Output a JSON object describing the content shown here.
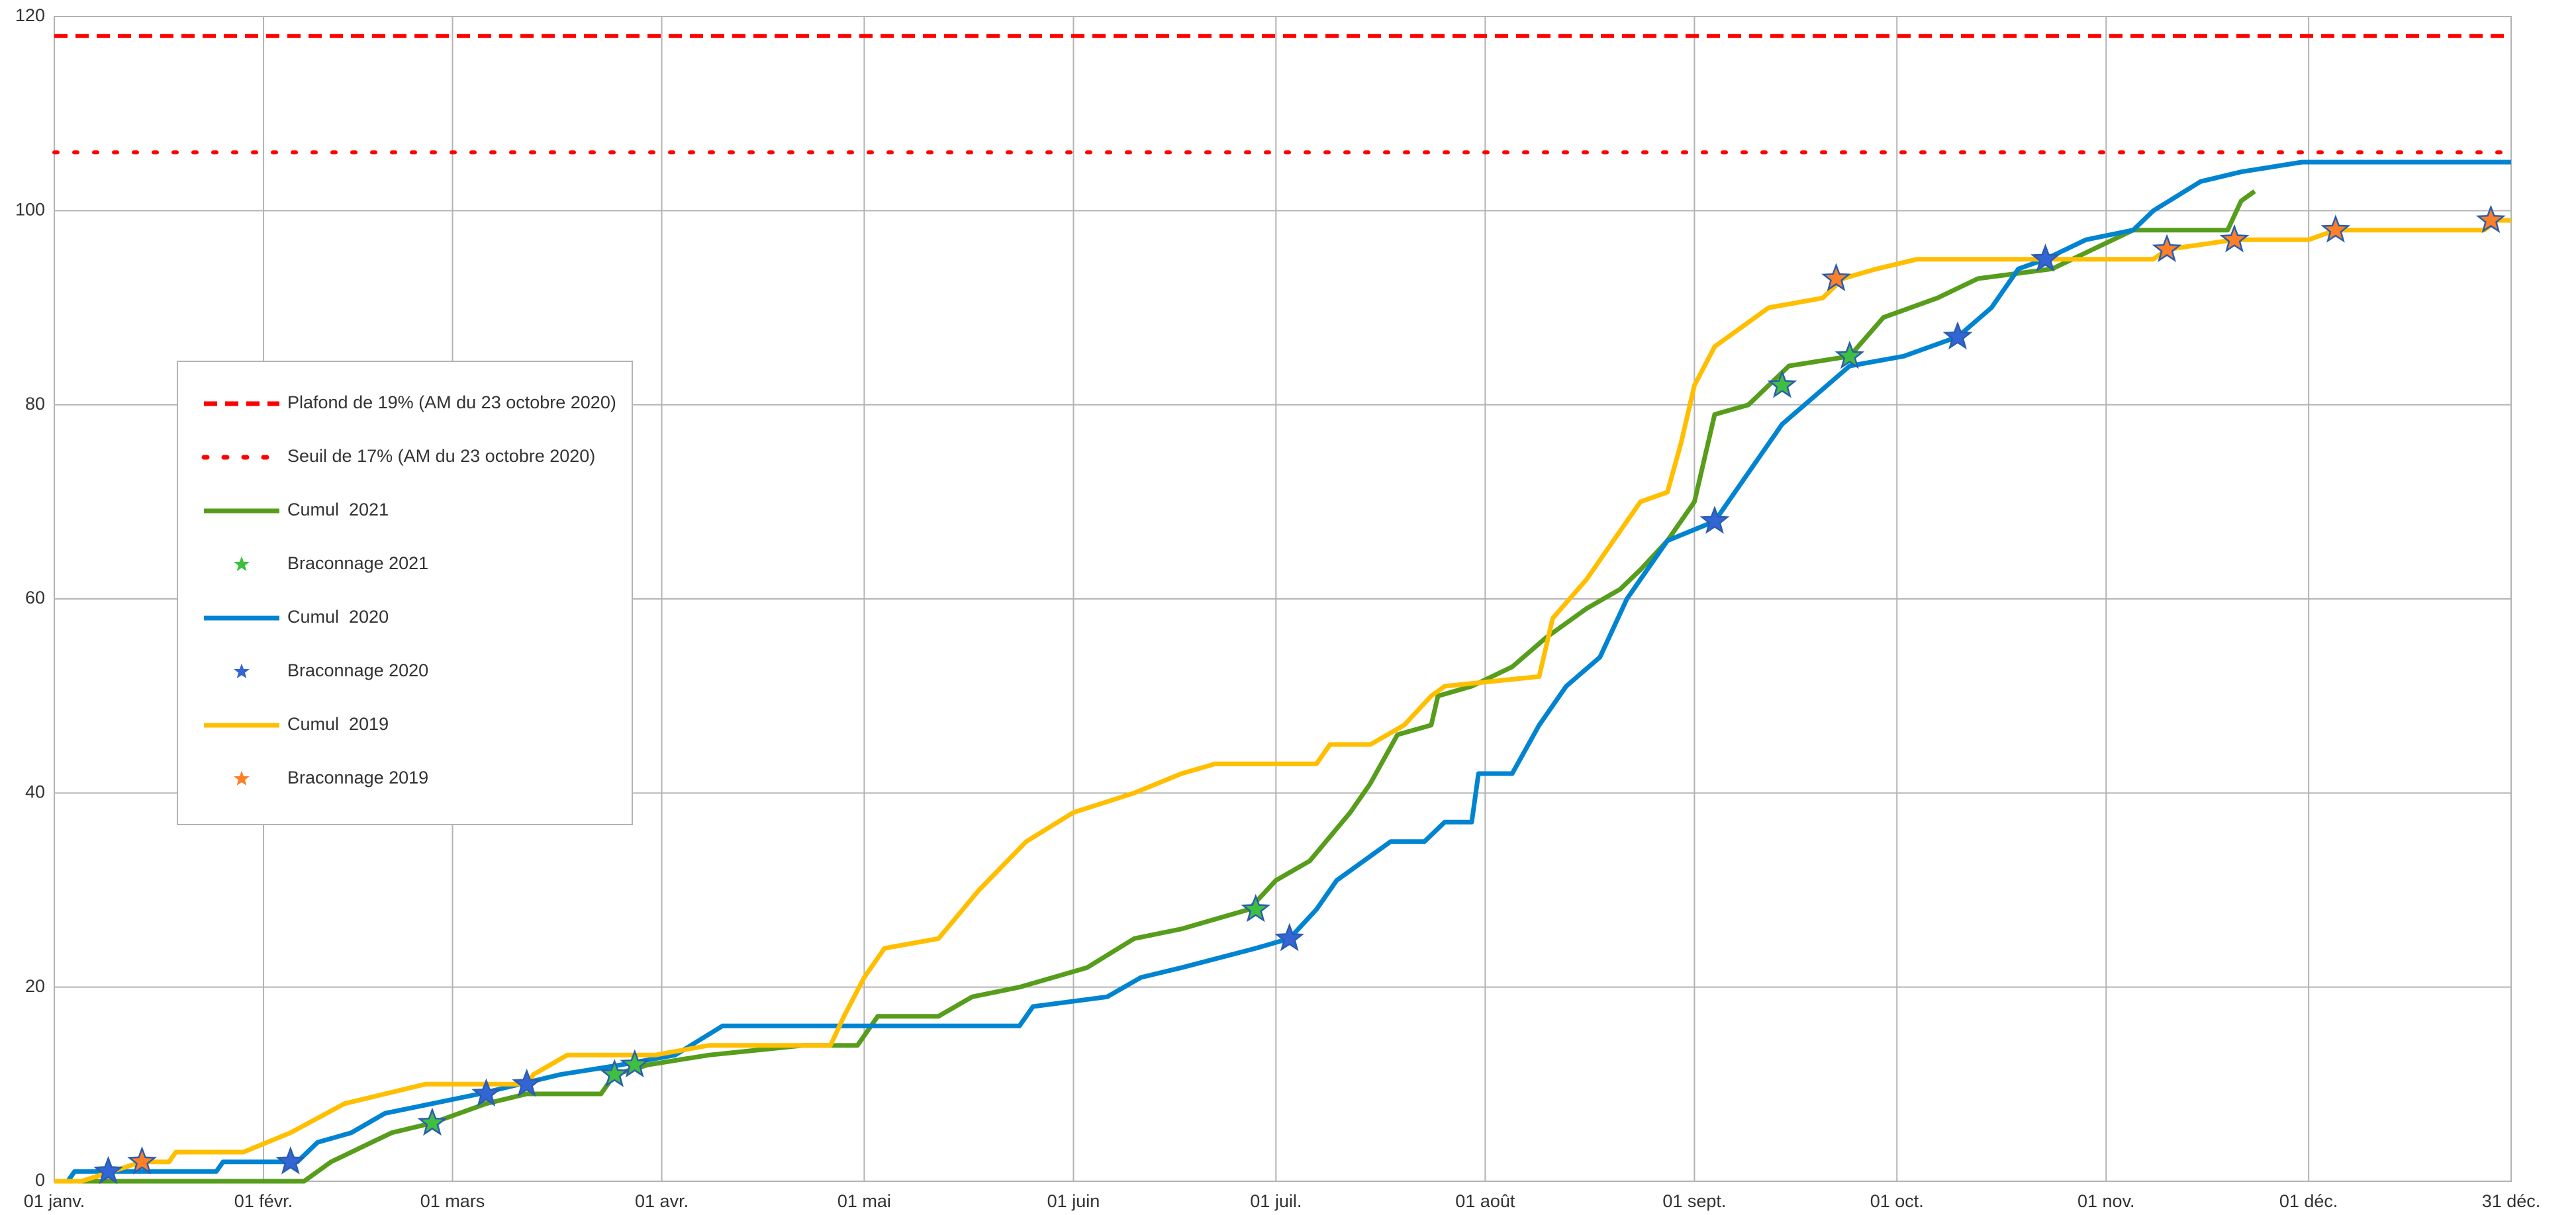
{
  "chart_data": {
    "type": "line",
    "xlim": [
      0,
      364
    ],
    "xticks": [
      {
        "value": 0,
        "label": "01 janv."
      },
      {
        "value": 31,
        "label": "01 févr."
      },
      {
        "value": 59,
        "label": "01 mars"
      },
      {
        "value": 90,
        "label": "01 avr."
      },
      {
        "value": 120,
        "label": "01 mai"
      },
      {
        "value": 151,
        "label": "01 juin"
      },
      {
        "value": 181,
        "label": "01 juil."
      },
      {
        "value": 212,
        "label": "01 août"
      },
      {
        "value": 243,
        "label": "01 sept."
      },
      {
        "value": 273,
        "label": "01 oct."
      },
      {
        "value": 304,
        "label": "01 nov."
      },
      {
        "value": 334,
        "label": "01 déc."
      },
      {
        "value": 364,
        "label": "31 déc."
      }
    ],
    "ylim": [
      0,
      120
    ],
    "yticks": [
      0,
      20,
      40,
      60,
      80,
      100,
      120
    ],
    "grid": true,
    "legend": "left",
    "series": [
      {
        "name": "Plafond de 19% (AM du 23 octobre 2020)",
        "mark": "line",
        "style": "dashed",
        "color": "#ff0000",
        "x": [
          0,
          364
        ],
        "values": [
          118,
          118
        ]
      },
      {
        "name": "Seuil de 17% (AM du 23 octobre 2020)",
        "mark": "line",
        "style": "dotted",
        "color": "#ff0000",
        "x": [
          0,
          364
        ],
        "values": [
          106,
          106
        ]
      },
      {
        "name": "Cumul  2021",
        "mark": "line",
        "style": "solid",
        "color": "#579d1c",
        "x": [
          0,
          37,
          41,
          47,
          50,
          56,
          64,
          70,
          81,
          83,
          88,
          97,
          111,
          119,
          122,
          131,
          136,
          143,
          153,
          160,
          167,
          177,
          181,
          186,
          192,
          195,
          199,
          204,
          205,
          210,
          216,
          221,
          227,
          232,
          235,
          239,
          243,
          246,
          251,
          257,
          266,
          271,
          279,
          285,
          296,
          305,
          308,
          322,
          324,
          326
        ],
        "values": [
          0,
          0,
          2,
          4,
          5,
          6,
          8,
          9,
          9,
          11,
          12,
          13,
          14,
          14,
          17,
          17,
          19,
          20,
          22,
          25,
          26,
          28,
          31,
          33,
          38,
          41,
          46,
          47,
          50,
          51,
          53,
          56,
          59,
          61,
          63,
          66,
          70,
          79,
          80,
          84,
          85,
          89,
          91,
          93,
          94,
          97,
          98,
          98,
          101,
          102
        ]
      },
      {
        "name": "Braconnage 2021",
        "mark": "star",
        "color": "#3fbf3f",
        "x": [
          56,
          83,
          86,
          178,
          256,
          266
        ],
        "values": [
          6,
          11,
          12,
          28,
          82,
          85
        ]
      },
      {
        "name": "Cumul  2020",
        "mark": "line",
        "style": "solid",
        "color": "#0084d1",
        "x": [
          0,
          2,
          3,
          24,
          25,
          36,
          39,
          44,
          49,
          56,
          63,
          69,
          75,
          84,
          92,
          99,
          143,
          145,
          156,
          161,
          167,
          178,
          183,
          187,
          190,
          194,
          198,
          203,
          206,
          210,
          211,
          216,
          220,
          224,
          229,
          233,
          239,
          246,
          250,
          256,
          266,
          274,
          282,
          287,
          291,
          295,
          301,
          308,
          311,
          318,
          324,
          333,
          364
        ],
        "values": [
          0,
          0,
          1,
          1,
          2,
          2,
          4,
          5,
          7,
          8,
          9,
          10,
          11,
          12,
          13,
          16,
          16,
          18,
          19,
          21,
          22,
          24,
          25,
          28,
          31,
          33,
          35,
          35,
          37,
          37,
          42,
          42,
          47,
          51,
          54,
          60,
          66,
          68,
          72,
          78,
          84,
          85,
          87,
          90,
          94,
          95,
          97,
          98,
          100,
          103,
          104,
          105,
          105
        ]
      },
      {
        "name": "Braconnage 2020",
        "mark": "star",
        "color": "#3465d4",
        "x": [
          8,
          35,
          64,
          70,
          183,
          246,
          282,
          295
        ],
        "values": [
          1,
          2,
          9,
          10,
          25,
          68,
          87,
          95
        ]
      },
      {
        "name": "Cumul  2019",
        "mark": "line",
        "style": "solid",
        "color": "#ffbf00",
        "x": [
          0,
          4,
          13,
          17,
          18,
          28,
          35,
          43,
          55,
          70,
          71,
          76,
          89,
          97,
          115,
          117,
          120,
          123,
          131,
          137,
          144,
          151,
          160,
          167,
          172,
          187,
          189,
          195,
          200,
          204,
          206,
          220,
          222,
          227,
          232,
          235,
          239,
          241,
          243,
          246,
          254,
          262,
          265,
          270,
          276,
          311,
          313,
          323,
          334,
          338,
          360,
          362,
          364
        ],
        "values": [
          0,
          0,
          2,
          2,
          3,
          3,
          5,
          8,
          10,
          10,
          11,
          13,
          13,
          14,
          14,
          17,
          21,
          24,
          25,
          30,
          35,
          38,
          40,
          42,
          43,
          43,
          45,
          45,
          47,
          50,
          51,
          52,
          58,
          62,
          67,
          70,
          71,
          76,
          82,
          86,
          90,
          91,
          93,
          94,
          95,
          95,
          96,
          97,
          97,
          98,
          98,
          99,
          99
        ]
      },
      {
        "name": "Braconnage 2019",
        "mark": "star",
        "color": "#ff7f27",
        "x": [
          13,
          264,
          313,
          323,
          338,
          361
        ],
        "values": [
          2,
          93,
          96,
          97,
          98,
          99
        ]
      }
    ]
  }
}
